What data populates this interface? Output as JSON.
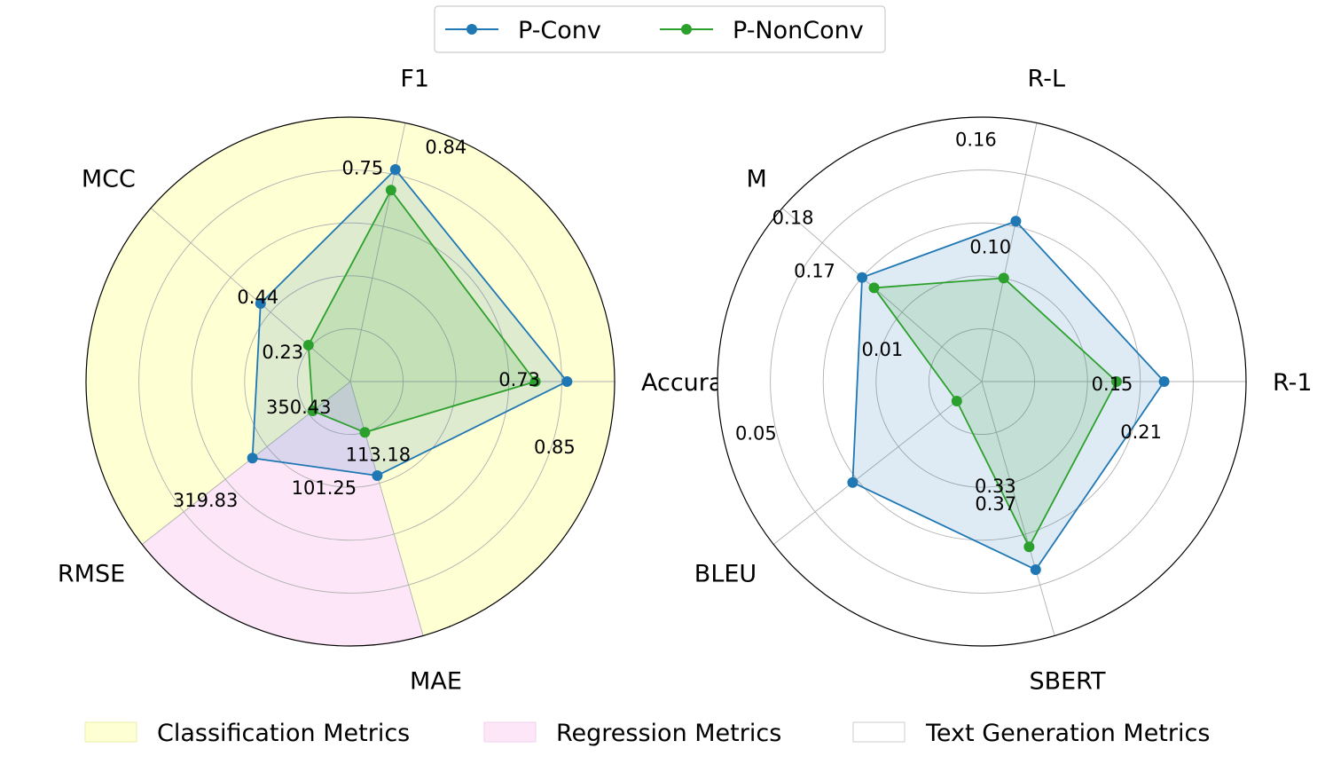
{
  "legend": {
    "series": [
      {
        "name": "P-Conv",
        "color": "#1f77b4"
      },
      {
        "name": "P-NonConv",
        "color": "#2ca02c"
      }
    ]
  },
  "bottom_legend": [
    {
      "label": "Classification Metrics",
      "color": "#ffffd4"
    },
    {
      "label": "Regression Metrics",
      "color": "#fce6f8"
    },
    {
      "label": "Text Generation Metrics",
      "color": "#ffffff"
    }
  ],
  "chart_data": [
    {
      "type": "radar",
      "title": "",
      "axes": [
        "Accuracy",
        "F1",
        "MCC",
        "RMSE",
        "MAE"
      ],
      "sectors": [
        {
          "group": "Classification Metrics",
          "axes": [
            "Accuracy",
            "F1",
            "MCC"
          ]
        },
        {
          "group": "Regression Metrics",
          "axes": [
            "RMSE"
          ]
        },
        {
          "group": "Classification Metrics",
          "axes": [
            "MAE"
          ]
        }
      ],
      "series": [
        {
          "name": "P-Conv",
          "normalized": [
            0.82,
            0.82,
            0.45,
            0.47,
            0.37
          ],
          "labels": [
            "0.85",
            "0.84",
            "0.44",
            "319.83",
            "101.25"
          ]
        },
        {
          "name": "P-NonConv",
          "normalized": [
            0.7,
            0.74,
            0.21,
            0.18,
            0.2
          ],
          "labels": [
            "0.73",
            "0.75",
            "0.23",
            "350.43",
            "113.18"
          ]
        }
      ]
    },
    {
      "type": "radar",
      "title": "",
      "axes": [
        "R-1",
        "R-L",
        "M",
        "BLEU",
        "SBERT"
      ],
      "sectors": [
        {
          "group": "Text Generation Metrics",
          "axes": [
            "R-1",
            "R-L",
            "M",
            "BLEU",
            "SBERT"
          ]
        }
      ],
      "series": [
        {
          "name": "P-Conv",
          "normalized": [
            0.69,
            0.62,
            0.6,
            0.62,
            0.74
          ],
          "labels": [
            "0.21",
            "0.16",
            "0.18",
            "0.05",
            "0.37"
          ]
        },
        {
          "name": "P-NonConv",
          "normalized": [
            0.51,
            0.4,
            0.54,
            0.12,
            0.65
          ],
          "labels": [
            "0.15",
            "0.10",
            "0.17",
            "0.01",
            "0.33"
          ]
        }
      ]
    }
  ]
}
